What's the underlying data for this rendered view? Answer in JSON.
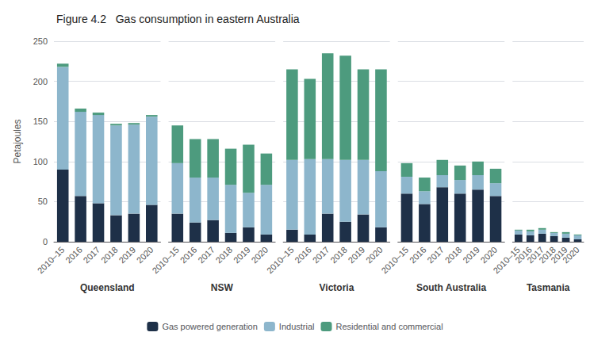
{
  "chart_data": [
    {
      "type": "bar",
      "stacked": true,
      "title": "Figure 4.2   Gas consumption in eastern Australia",
      "ylabel": "Petajoules",
      "xlabel": "Queensland",
      "legend": "bottom",
      "categories": [
        "2010–15",
        "2016",
        "2017",
        "2018",
        "2019",
        "2020"
      ],
      "series": [
        {
          "name": "Gas powered generation",
          "color": "#1e3048",
          "values": [
            90,
            57,
            48,
            33,
            35,
            46
          ]
        },
        {
          "name": "Industrial",
          "color": "#8db6cc",
          "values": [
            128,
            105,
            110,
            112,
            111,
            110
          ]
        },
        {
          "name": "Residential and commercial",
          "color": "#4d9b7e",
          "values": [
            4,
            4,
            3,
            2,
            2,
            2
          ]
        }
      ],
      "ylim": [
        0,
        250
      ],
      "yticks": [
        0,
        50,
        100,
        150,
        200,
        250
      ],
      "grid": true
    },
    {
      "type": "bar",
      "stacked": true,
      "xlabel": "NSW",
      "tick_labels": "x",
      "categories": [
        "2010–15",
        "2016",
        "2017",
        "2018",
        "2019",
        "2020"
      ],
      "series": [
        {
          "name": "Gas powered generation",
          "color": "#1e3048",
          "values": [
            35,
            24,
            27,
            11,
            18,
            9
          ]
        },
        {
          "name": "Industrial",
          "color": "#8db6cc",
          "values": [
            63,
            56,
            53,
            60,
            43,
            62
          ]
        },
        {
          "name": "Residential and commercial",
          "color": "#4d9b7e",
          "values": [
            47,
            48,
            48,
            45,
            60,
            39
          ]
        }
      ],
      "ylim": [
        0,
        250
      ],
      "yticks": [
        0,
        50,
        100,
        150,
        200,
        250
      ],
      "grid": true
    },
    {
      "type": "bar",
      "stacked": true,
      "xlabel": "Victoria",
      "tick_labels": "x",
      "categories": [
        "2010–15",
        "2016",
        "2017",
        "2018",
        "2019",
        "2020"
      ],
      "series": [
        {
          "name": "Gas powered generation",
          "color": "#1e3048",
          "values": [
            15,
            9,
            35,
            25,
            34,
            18
          ]
        },
        {
          "name": "Industrial",
          "color": "#8db6cc",
          "values": [
            87,
            94,
            68,
            77,
            68,
            70
          ]
        },
        {
          "name": "Residential and commercial",
          "color": "#4d9b7e",
          "values": [
            113,
            100,
            132,
            130,
            113,
            127
          ]
        }
      ],
      "ylim": [
        0,
        250
      ],
      "yticks": [
        0,
        50,
        100,
        150,
        200,
        250
      ],
      "grid": true
    },
    {
      "type": "bar",
      "stacked": true,
      "xlabel": "South Australia",
      "tick_labels": "x",
      "categories": [
        "2010–15",
        "2016",
        "2017",
        "2018",
        "2019",
        "2020"
      ],
      "series": [
        {
          "name": "Gas powered generation",
          "color": "#1e3048",
          "values": [
            60,
            47,
            68,
            60,
            65,
            57
          ]
        },
        {
          "name": "Industrial",
          "color": "#8db6cc",
          "values": [
            21,
            16,
            15,
            17,
            18,
            16
          ]
        },
        {
          "name": "Residential and commercial",
          "color": "#4d9b7e",
          "values": [
            17,
            17,
            19,
            18,
            17,
            18
          ]
        }
      ],
      "ylim": [
        0,
        250
      ],
      "yticks": [
        0,
        50,
        100,
        150,
        200,
        250
      ],
      "grid": true
    },
    {
      "type": "bar",
      "stacked": true,
      "xlabel": "Tasmania",
      "tick_labels": "x",
      "categories": [
        "2010–15",
        "2016",
        "2017",
        "2018",
        "2019",
        "2020"
      ],
      "series": [
        {
          "name": "Gas powered generation",
          "color": "#1e3048",
          "values": [
            9,
            8,
            10,
            7,
            5,
            3
          ]
        },
        {
          "name": "Industrial",
          "color": "#8db6cc",
          "values": [
            5,
            5,
            5,
            4,
            5,
            5
          ]
        },
        {
          "name": "Residential and commercial",
          "color": "#4d9b7e",
          "values": [
            1,
            2,
            2,
            1,
            2,
            1
          ]
        }
      ],
      "ylim": [
        0,
        250
      ],
      "yticks": [
        0,
        50,
        100,
        150,
        200,
        250
      ],
      "grid": true
    }
  ]
}
